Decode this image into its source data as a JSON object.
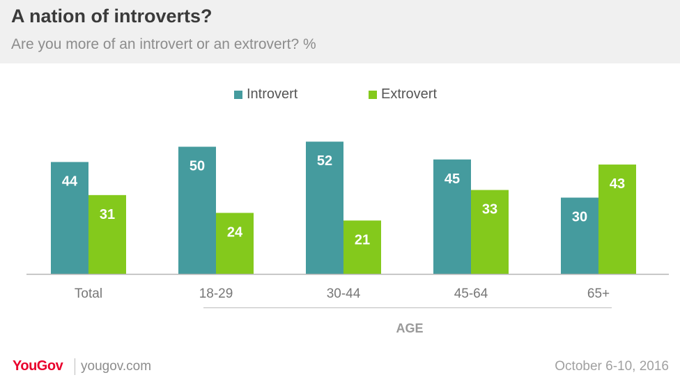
{
  "title": "A nation of introverts?",
  "subtitle": "Are you more of an introvert or an extrovert? %",
  "colors": {
    "introvert": "#459b9e",
    "extrovert": "#84c91c",
    "header_bg": "#f0f0f0",
    "brand": "#e9002c"
  },
  "chart_data": {
    "type": "bar",
    "categories": [
      "Total",
      "18-29",
      "30-44",
      "45-64",
      "65+"
    ],
    "series": [
      {
        "name": "Introvert",
        "values": [
          44,
          50,
          52,
          45,
          30
        ]
      },
      {
        "name": "Extrovert",
        "values": [
          31,
          24,
          21,
          33,
          43
        ]
      }
    ],
    "group_label": "AGE",
    "legend_position": "top-center",
    "grid": false
  },
  "footer": {
    "logo": "YouGov",
    "url": "yougov.com",
    "date": "October 6-10, 2016"
  }
}
